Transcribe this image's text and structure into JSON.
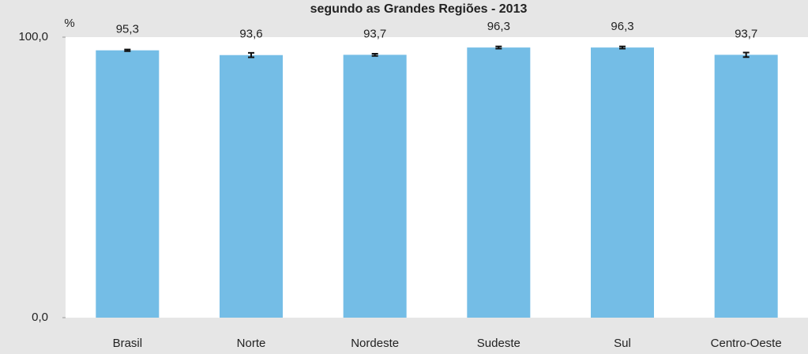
{
  "chart_data": {
    "type": "bar",
    "title": "segundo as Grandes Regiões - 2013",
    "ylabel": "%",
    "categories": [
      "Brasil",
      "Norte",
      "Nordeste",
      "Sudeste",
      "Sul",
      "Centro-Oeste"
    ],
    "values": [
      95.3,
      93.6,
      93.7,
      96.3,
      96.3,
      93.7
    ],
    "value_labels": [
      "95,3",
      "93,6",
      "93,7",
      "96,3",
      "96,3",
      "93,7"
    ],
    "errors": [
      0.3,
      0.8,
      0.4,
      0.4,
      0.4,
      0.8
    ],
    "color": "#74bde6",
    "ylim": [
      0,
      100
    ],
    "yticks": [
      {
        "value": 0,
        "label": "0,0"
      },
      {
        "value": 100,
        "label": "100,0"
      }
    ]
  }
}
